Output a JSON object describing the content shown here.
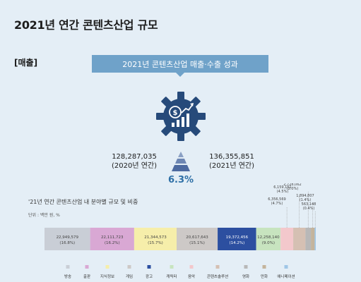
{
  "title": "2021년 연간 콘텐츠산업 규모",
  "section_label": "[매출]",
  "banner": "2021년 콘텐츠산업 매출·수출 성과",
  "summary": {
    "prev_value": "128,287,035",
    "prev_label": "(2020년 연간)",
    "curr_value": "136,355,851",
    "curr_label": "(2021년 연간)",
    "growth": "6.3%"
  },
  "chart_title": "'21년 연간 콘텐츠산업 내 분야별 규모 및 비중",
  "unit": "단위 : 백만 원, %",
  "chart_data": {
    "type": "bar",
    "orientation": "horizontal-stacked",
    "title": "'21년 연간 콘텐츠산업 내 분야별 규모 및 비중",
    "unit": "단위 : 백만 원, %",
    "categories": [
      "방송",
      "출판",
      "지식정보",
      "게임",
      "광고",
      "캐릭터",
      "음악",
      "콘텐츠솔루션",
      "영화",
      "만화",
      "애니메이션"
    ],
    "values": [
      22949579,
      22111723,
      21344573,
      20617643,
      19372456,
      12258140,
      6356569,
      6159151,
      2728062,
      1894807,
      563148
    ],
    "value_labels": [
      "22,949,579",
      "22,111,723",
      "21,344,573",
      "20,617,643",
      "19,372,456",
      "12,258,140",
      "6,356,569",
      "6,159,151",
      "2,728,062",
      "1,894,807",
      "563,148"
    ],
    "shares": [
      "(16.8%)",
      "(16.2%)",
      "(15.7%)",
      "(15.1%)",
      "(14.2%)",
      "(9.0%)",
      "(4.7%)",
      "(4.5%)",
      "(2.0%)",
      "(1.4%)",
      "(0.4%)"
    ],
    "colors": [
      "#c9ced6",
      "#d9a8d4",
      "#f6eeaa",
      "#cdc9c7",
      "#2c4fa0",
      "#c7e4bf",
      "#f3c8cc",
      "#d5c0b3",
      "#b8b8b8",
      "#c4b49c",
      "#9fc6e6"
    ],
    "legend_position": "bottom"
  }
}
